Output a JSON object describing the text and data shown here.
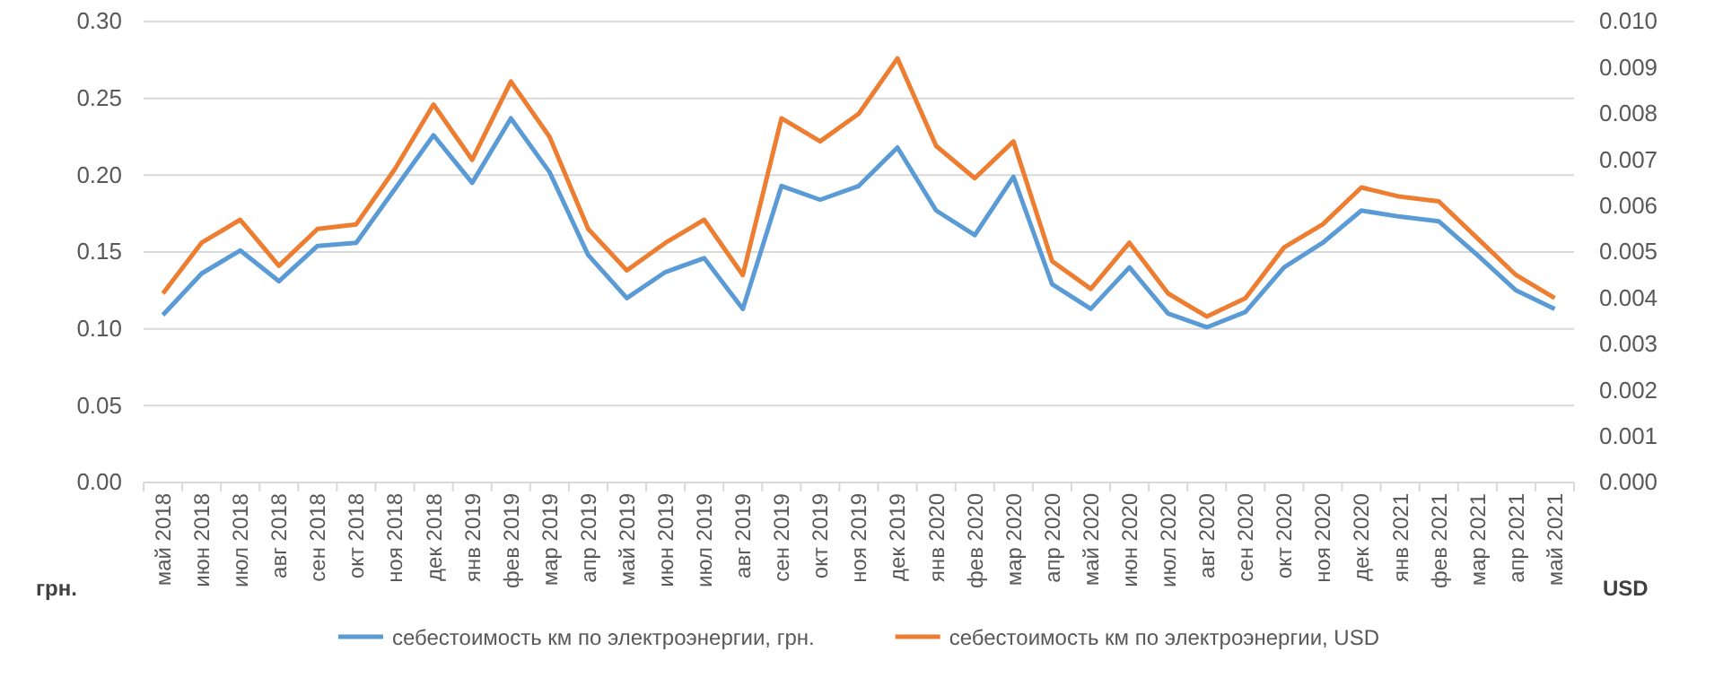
{
  "chart_data": {
    "type": "line",
    "categories": [
      "май 2018",
      "июн 2018",
      "июл 2018",
      "авг 2018",
      "сен 2018",
      "окт 2018",
      "ноя 2018",
      "дек 2018",
      "янв 2019",
      "фев 2019",
      "мар 2019",
      "апр 2019",
      "май 2019",
      "июн 2019",
      "июл 2019",
      "авг 2019",
      "сен 2019",
      "окт 2019",
      "ноя 2019",
      "дек 2019",
      "янв 2020",
      "фев 2020",
      "мар 2020",
      "апр 2020",
      "май 2020",
      "июн 2020",
      "июл 2020",
      "авг 2020",
      "сен 2020",
      "окт 2020",
      "ноя 2020",
      "дек 2020",
      "янв 2021",
      "фев 2021",
      "мар 2021",
      "апр 2021",
      "май 2021"
    ],
    "series": [
      {
        "name": "себестоимость км по электроэнергии, грн.",
        "color": "#5b9bd5",
        "values": [
          0.109,
          0.136,
          0.151,
          0.131,
          0.154,
          0.156,
          0.191,
          0.226,
          0.195,
          0.237,
          0.202,
          0.148,
          0.12,
          0.137,
          0.146,
          0.113,
          0.193,
          0.184,
          0.193,
          0.218,
          0.177,
          0.161,
          0.199,
          0.129,
          0.113,
          0.14,
          0.11,
          0.101,
          0.111,
          0.14,
          0.156,
          0.177,
          0.173,
          0.17,
          0.148,
          0.125,
          0.113
        ]
      },
      {
        "name": "себестоимость км по электроэнергии, USD",
        "color": "#ed7d31",
        "axis": "y2",
        "values": [
          0.0041,
          0.0052,
          0.0057,
          0.0047,
          0.0055,
          0.0056,
          0.0068,
          0.0082,
          0.007,
          0.0087,
          0.0075,
          0.0055,
          0.0046,
          0.0052,
          0.0057,
          0.0045,
          0.0079,
          0.0074,
          0.008,
          0.0092,
          0.0073,
          0.0066,
          0.0074,
          0.0048,
          0.0042,
          0.0052,
          0.0041,
          0.0036,
          0.004,
          0.0051,
          0.0056,
          0.0064,
          0.0062,
          0.0061,
          0.0053,
          0.0045,
          0.004
        ]
      }
    ],
    "ylabel": "грн.",
    "y2label": "USD",
    "ylim": [
      0,
      0.3
    ],
    "yticks": [
      {
        "value": 0,
        "label": "0.00"
      },
      {
        "value": 0.05,
        "label": "0.05"
      },
      {
        "value": 0.1,
        "label": "0.10"
      },
      {
        "value": 0.15,
        "label": "0.15"
      },
      {
        "value": 0.2,
        "label": "0.20"
      },
      {
        "value": 0.25,
        "label": "0.25"
      },
      {
        "value": 0.3,
        "label": "0.30"
      }
    ],
    "y2lim": [
      0,
      0.01
    ],
    "y2ticks": [
      {
        "value": 0,
        "label": "0.000"
      },
      {
        "value": 0.001,
        "label": "0.001"
      },
      {
        "value": 0.002,
        "label": "0.002"
      },
      {
        "value": 0.003,
        "label": "0.003"
      },
      {
        "value": 0.004,
        "label": "0.004"
      },
      {
        "value": 0.005,
        "label": "0.005"
      },
      {
        "value": 0.006,
        "label": "0.006"
      },
      {
        "value": 0.007,
        "label": "0.007"
      },
      {
        "value": 0.008,
        "label": "0.008"
      },
      {
        "value": 0.009,
        "label": "0.009"
      },
      {
        "value": 0.01,
        "label": "0.010"
      }
    ],
    "grid": "y",
    "legend": "bottom",
    "marker": "none",
    "line_style": "solid"
  }
}
